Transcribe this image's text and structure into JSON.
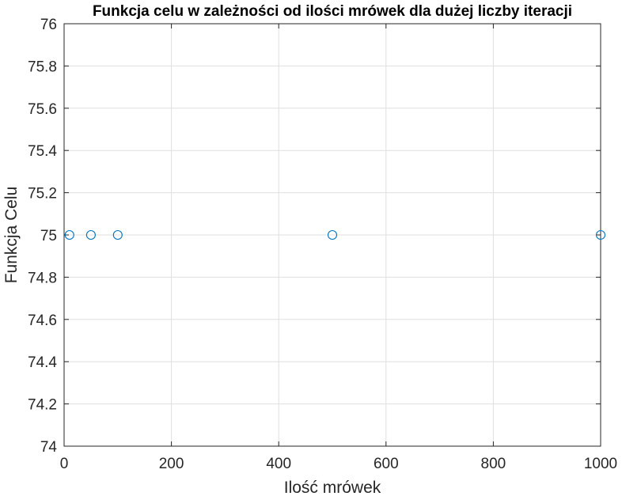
{
  "chart_data": {
    "type": "scatter",
    "title": "Funkcja celu w zależności od ilości mrówek dla dużej liczby iteracji",
    "xlabel": "Ilość mrówek",
    "ylabel": "Funkcja Celu",
    "xlim": [
      0,
      1000
    ],
    "ylim": [
      74,
      76
    ],
    "xticks": [
      "0",
      "200",
      "400",
      "600",
      "800",
      "1000"
    ],
    "yticks": [
      "74",
      "74.2",
      "74.4",
      "74.6",
      "74.8",
      "75",
      "75.2",
      "75.4",
      "75.6",
      "75.8",
      "76"
    ],
    "grid": true,
    "marker": "circle-open",
    "color": "#0072BD",
    "series": [
      {
        "x": [
          10,
          50,
          100,
          500,
          1000
        ],
        "y": [
          75,
          75,
          75,
          75,
          75
        ]
      }
    ]
  }
}
